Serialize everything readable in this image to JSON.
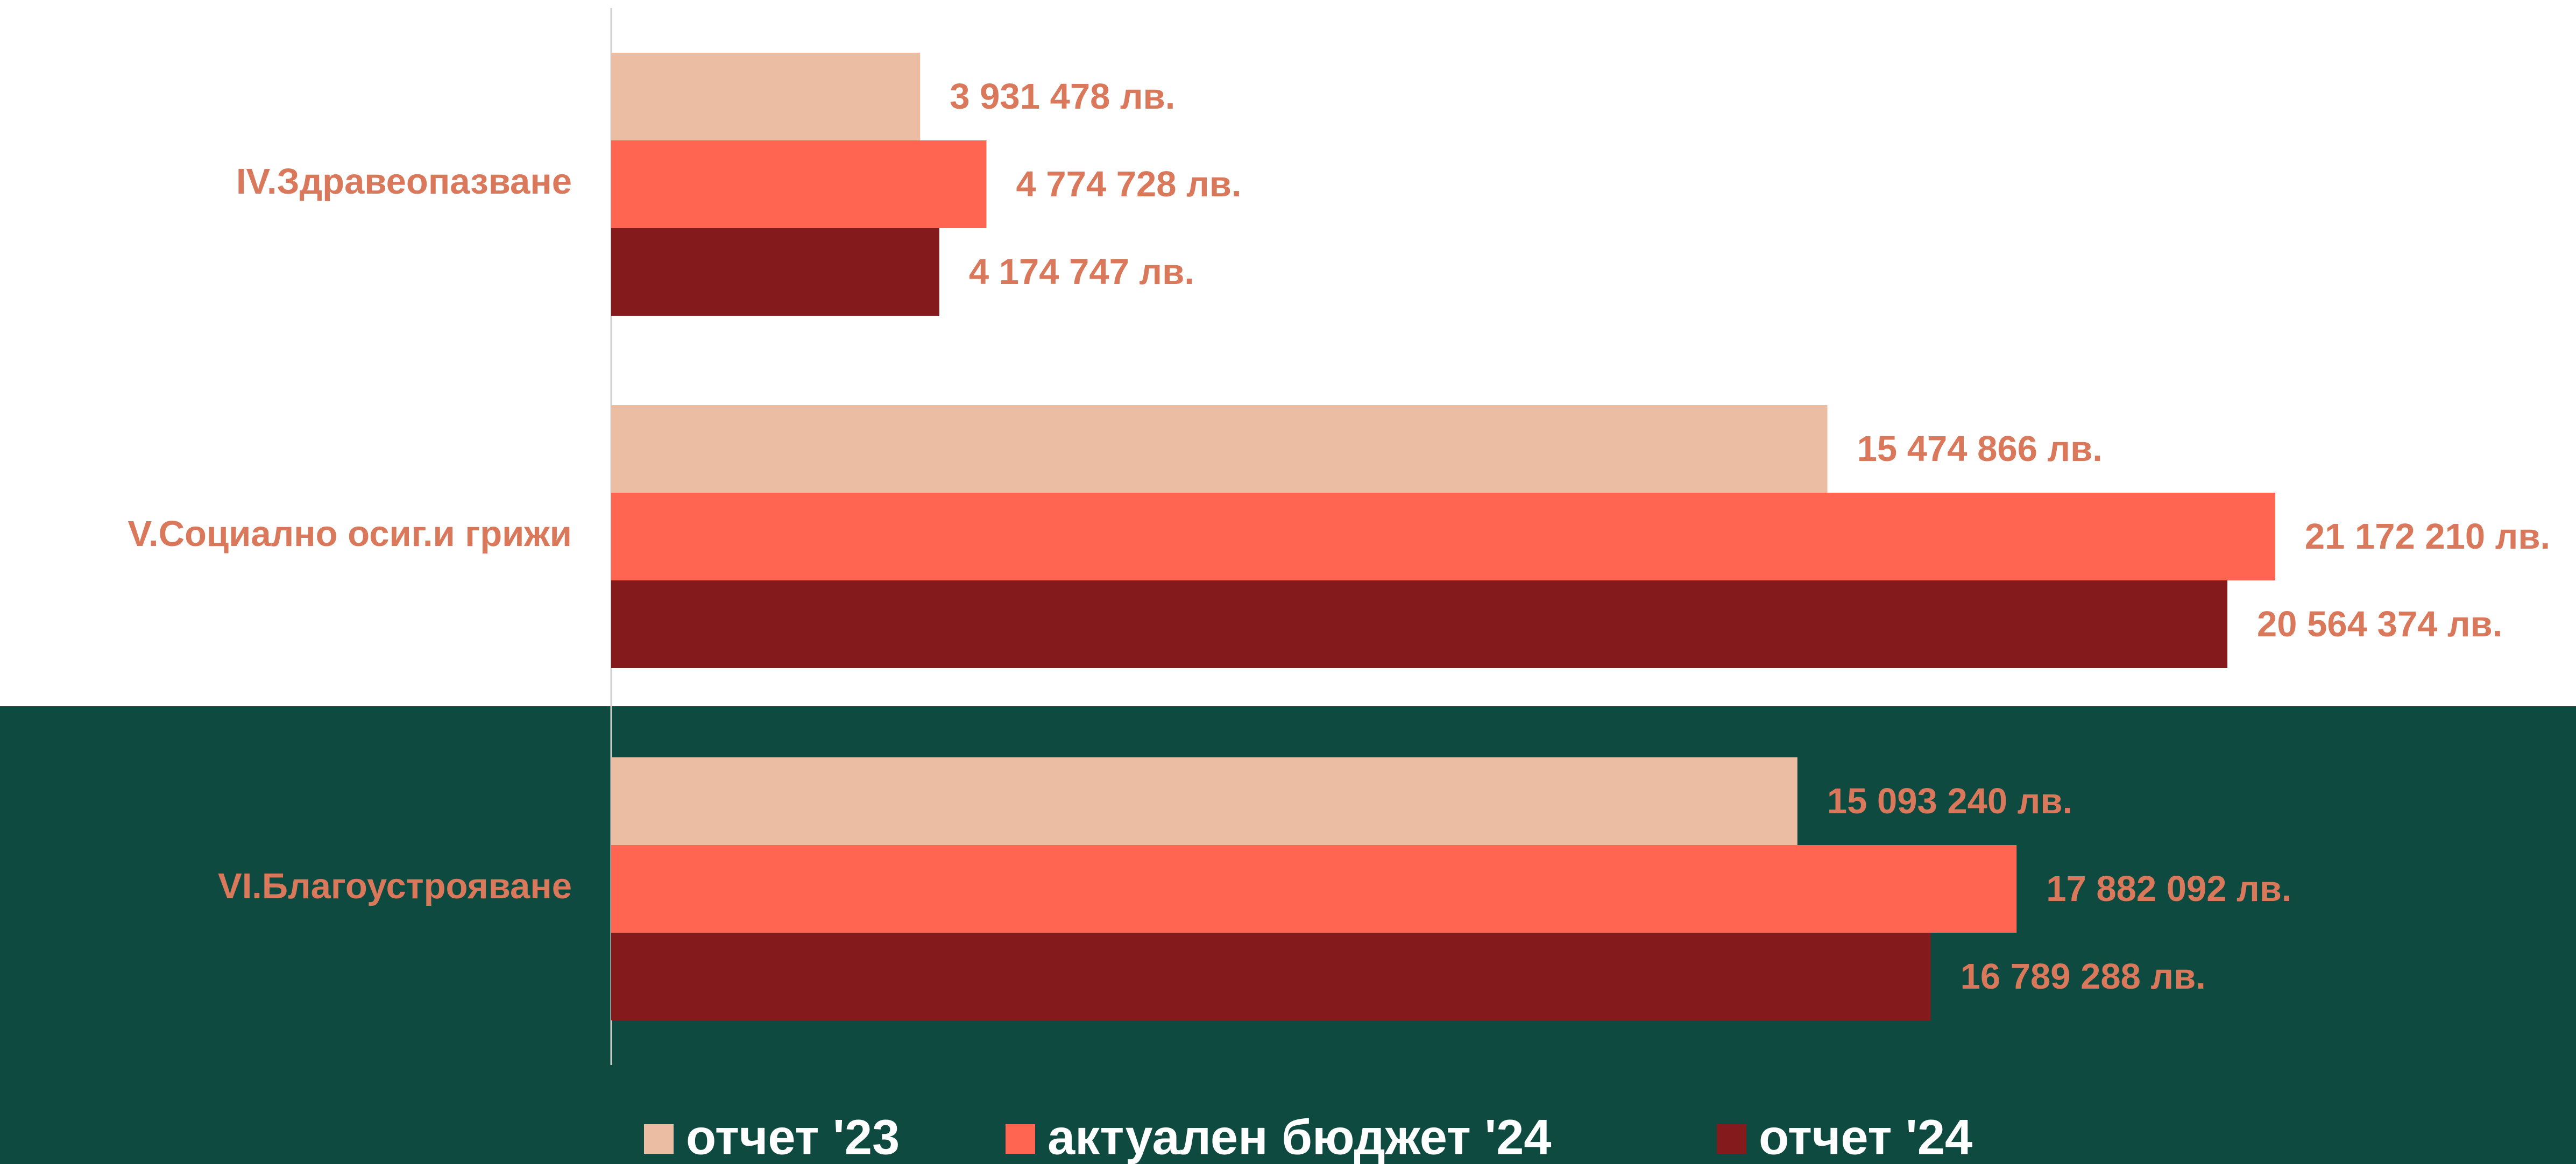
{
  "chart_data": {
    "type": "bar",
    "orientation": "horizontal",
    "categories": [
      "IV.Здравеопазване",
      "V.Социално осиг.и грижи",
      "VI.Благоустрояване"
    ],
    "series": [
      {
        "name": "отчет '23",
        "color": "#ebbea4",
        "values": [
          3931478,
          15474866,
          15093240
        ],
        "value_labels": [
          "3 931 478 лв.",
          "15 474 866 лв.",
          "15 093 240 лв."
        ]
      },
      {
        "name": "актуален бюджет '24",
        "color": "#ff6550",
        "values": [
          4774728,
          21172210,
          17882092
        ],
        "value_labels": [
          "4 774 728 лв.",
          "21 172 210 лв.",
          "17 882 092 лв."
        ]
      },
      {
        "name": "отчет '24",
        "color": "#841a1b",
        "values": [
          4174747,
          20564374,
          16789288
        ],
        "value_labels": [
          "4 174 747 лв.",
          "20 564 374 лв.",
          "16 789 288 лв."
        ]
      }
    ],
    "xlim": [
      0,
      25000000
    ],
    "legend": "bottom"
  }
}
